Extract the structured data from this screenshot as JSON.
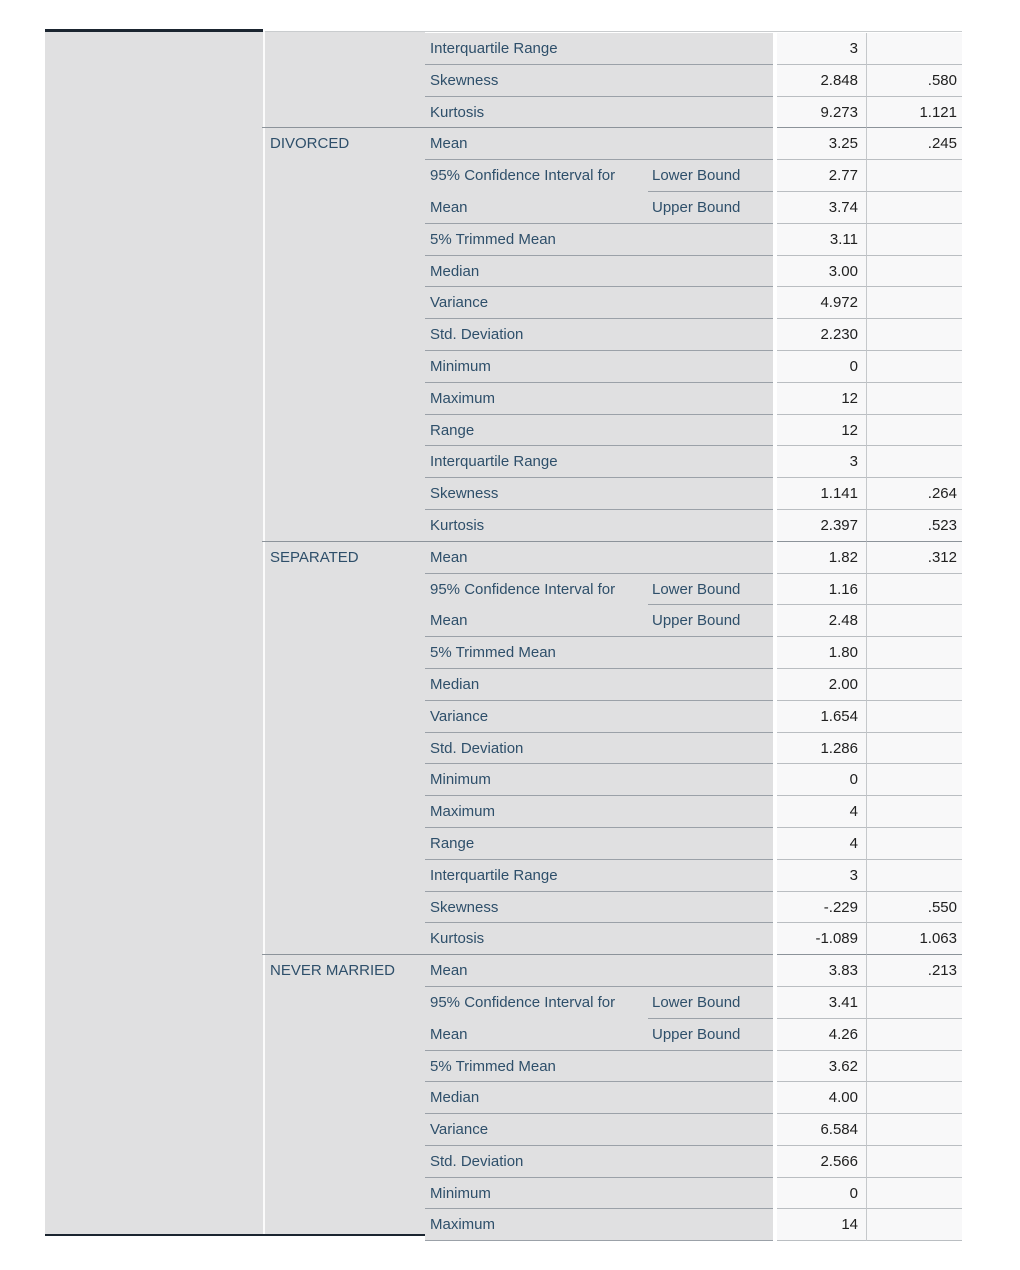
{
  "app": "statistics-viewer",
  "colors": {
    "label_text": "#2e4f6a",
    "value_text": "#202020",
    "label_cell_bg": "#e0e0e1",
    "value_cell_bg": "#f8f8f9",
    "dark_border": "#1b2530",
    "label_separator": "#9ba1a8",
    "group_separator": "#8c939a",
    "value_separator": "#babec2"
  },
  "table": {
    "groups": [
      {
        "label": "",
        "rows": [
          {
            "stat": "Interquartile Range",
            "sub": "",
            "value": "3",
            "se": ""
          },
          {
            "stat": "Skewness",
            "sub": "",
            "value": "2.848",
            "se": ".580"
          },
          {
            "stat": "Kurtosis",
            "sub": "",
            "value": "9.273",
            "se": "1.121",
            "variant": "groupEnd"
          }
        ]
      },
      {
        "label": "DIVORCED",
        "rows": [
          {
            "stat": "Mean",
            "sub": "",
            "value": "3.25",
            "se": ".245"
          },
          {
            "stat": "95% Confidence Interval for",
            "sub": "Lower Bound",
            "value": "2.77",
            "se": "",
            "variant": "ciLower"
          },
          {
            "stat": "Mean",
            "sub": "Upper Bound",
            "value": "3.74",
            "se": ""
          },
          {
            "stat": "5% Trimmed Mean",
            "sub": "",
            "value": "3.11",
            "se": ""
          },
          {
            "stat": "Median",
            "sub": "",
            "value": "3.00",
            "se": ""
          },
          {
            "stat": "Variance",
            "sub": "",
            "value": "4.972",
            "se": ""
          },
          {
            "stat": "Std. Deviation",
            "sub": "",
            "value": "2.230",
            "se": ""
          },
          {
            "stat": "Minimum",
            "sub": "",
            "value": "0",
            "se": ""
          },
          {
            "stat": "Maximum",
            "sub": "",
            "value": "12",
            "se": ""
          },
          {
            "stat": "Range",
            "sub": "",
            "value": "12",
            "se": ""
          },
          {
            "stat": "Interquartile Range",
            "sub": "",
            "value": "3",
            "se": ""
          },
          {
            "stat": "Skewness",
            "sub": "",
            "value": "1.141",
            "se": ".264"
          },
          {
            "stat": "Kurtosis",
            "sub": "",
            "value": "2.397",
            "se": ".523",
            "variant": "groupEnd"
          }
        ]
      },
      {
        "label": "SEPARATED",
        "rows": [
          {
            "stat": "Mean",
            "sub": "",
            "value": "1.82",
            "se": ".312"
          },
          {
            "stat": "95% Confidence Interval for",
            "sub": "Lower Bound",
            "value": "1.16",
            "se": "",
            "variant": "ciLower"
          },
          {
            "stat": "Mean",
            "sub": "Upper Bound",
            "value": "2.48",
            "se": ""
          },
          {
            "stat": "5% Trimmed Mean",
            "sub": "",
            "value": "1.80",
            "se": ""
          },
          {
            "stat": "Median",
            "sub": "",
            "value": "2.00",
            "se": ""
          },
          {
            "stat": "Variance",
            "sub": "",
            "value": "1.654",
            "se": ""
          },
          {
            "stat": "Std. Deviation",
            "sub": "",
            "value": "1.286",
            "se": ""
          },
          {
            "stat": "Minimum",
            "sub": "",
            "value": "0",
            "se": ""
          },
          {
            "stat": "Maximum",
            "sub": "",
            "value": "4",
            "se": ""
          },
          {
            "stat": "Range",
            "sub": "",
            "value": "4",
            "se": ""
          },
          {
            "stat": "Interquartile Range",
            "sub": "",
            "value": "3",
            "se": ""
          },
          {
            "stat": "Skewness",
            "sub": "",
            "value": "-.229",
            "se": ".550"
          },
          {
            "stat": "Kurtosis",
            "sub": "",
            "value": "-1.089",
            "se": "1.063",
            "variant": "groupEnd"
          }
        ]
      },
      {
        "label": "NEVER MARRIED",
        "rows": [
          {
            "stat": "Mean",
            "sub": "",
            "value": "3.83",
            "se": ".213"
          },
          {
            "stat": "95% Confidence Interval for",
            "sub": "Lower Bound",
            "value": "3.41",
            "se": "",
            "variant": "ciLower"
          },
          {
            "stat": "Mean",
            "sub": "Upper Bound",
            "value": "4.26",
            "se": ""
          },
          {
            "stat": "5% Trimmed Mean",
            "sub": "",
            "value": "3.62",
            "se": ""
          },
          {
            "stat": "Median",
            "sub": "",
            "value": "4.00",
            "se": ""
          },
          {
            "stat": "Variance",
            "sub": "",
            "value": "6.584",
            "se": ""
          },
          {
            "stat": "Std. Deviation",
            "sub": "",
            "value": "2.566",
            "se": ""
          },
          {
            "stat": "Minimum",
            "sub": "",
            "value": "0",
            "se": ""
          },
          {
            "stat": "Maximum",
            "sub": "",
            "value": "14",
            "se": ""
          }
        ]
      }
    ]
  }
}
